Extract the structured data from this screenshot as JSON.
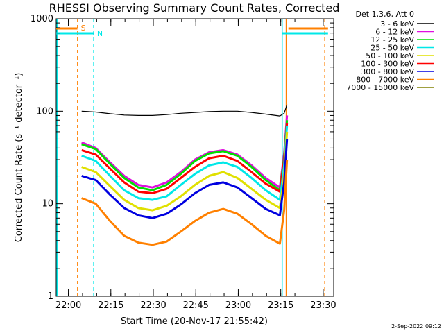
{
  "chart_data": {
    "type": "line",
    "title": "RHESSI Observing Summary Count Rates, Corrected",
    "xlabel": "Start Time (20-Nov-17 21:55:42)",
    "ylabel": "Corrected Count Rate (s⁻¹ detector⁻¹)",
    "yscale": "log",
    "ylim": [
      1,
      1000
    ],
    "xlim_minutes_from_start": [
      0,
      98
    ],
    "x_ticks": [
      {
        "label": "22:00",
        "minute": 4.3
      },
      {
        "label": "22:15",
        "minute": 19.3
      },
      {
        "label": "22:30",
        "minute": 34.3
      },
      {
        "label": "22:45",
        "minute": 49.3
      },
      {
        "label": "23:00",
        "minute": 64.3
      },
      {
        "label": "23:15",
        "minute": 79.3
      },
      {
        "label": "23:30",
        "minute": 94.3
      }
    ],
    "y_ticks": [
      {
        "label": "1",
        "value": 1
      },
      {
        "label": "10",
        "value": 10
      },
      {
        "label": "100",
        "value": 100
      },
      {
        "label": "1000",
        "value": 1000
      }
    ],
    "legend_header": "Det 1,3,6, Att 0",
    "x": [
      9,
      14,
      19,
      24,
      29,
      34,
      39,
      44,
      49,
      54,
      59,
      64,
      69,
      74,
      79,
      80.5,
      81.5
    ],
    "series": [
      {
        "name": "3 - 6 keV",
        "color": "#000000",
        "values": [
          100,
          98,
          94,
          91,
          90,
          90,
          92,
          95,
          97,
          99,
          100,
          100,
          97,
          93,
          89,
          95,
          118
        ]
      },
      {
        "name": "6 - 12 keV",
        "color": "#e010e0",
        "values": [
          46,
          40,
          28,
          20,
          16,
          15,
          17,
          22,
          30,
          36,
          38,
          34,
          26,
          19,
          15,
          35,
          90
        ]
      },
      {
        "name": "12 - 25 keV",
        "color": "#00e000",
        "values": [
          44,
          39,
          27,
          19,
          15,
          14,
          16,
          21,
          29,
          35,
          37,
          33,
          25,
          18,
          14,
          32,
          80
        ]
      },
      {
        "name": "25 - 50 keV",
        "color": "#00e8e8",
        "values": [
          33,
          29,
          20,
          14,
          11.5,
          11,
          12,
          16,
          21,
          26,
          28,
          25,
          19,
          14,
          11,
          26,
          70
        ]
      },
      {
        "name": "50 - 100 keV",
        "color": "#e0e000",
        "values": [
          25,
          22,
          15.5,
          11,
          9,
          8.5,
          9.5,
          12,
          16,
          20,
          22,
          19,
          14.5,
          11,
          9,
          20,
          60
        ]
      },
      {
        "name": "100 - 300 keV",
        "color": "#ff0000",
        "values": [
          38,
          34,
          24,
          17,
          13.5,
          13,
          14.5,
          19,
          25,
          31,
          33,
          29,
          22,
          16.5,
          13.5,
          30,
          75
        ]
      },
      {
        "name": "300 - 800 keV",
        "color": "#0000e0",
        "values": [
          20,
          18,
          12.5,
          9,
          7.5,
          7,
          7.8,
          9.8,
          13,
          16,
          17,
          15,
          11.5,
          8.8,
          7.5,
          17,
          50
        ]
      },
      {
        "name": "800 - 7000 keV",
        "color": "#ff8000",
        "values": [
          11.5,
          10,
          6.5,
          4.5,
          3.8,
          3.6,
          3.9,
          5,
          6.5,
          8,
          8.8,
          7.8,
          6,
          4.5,
          3.7,
          8.5,
          30
        ]
      },
      {
        "name": "7000 - 15000 keV",
        "color": "#808000",
        "values": [
          null,
          null,
          null,
          null,
          null,
          null,
          null,
          null,
          null,
          null,
          null,
          null,
          null,
          null,
          null,
          null,
          null
        ]
      }
    ],
    "markers": [
      {
        "label": "S",
        "color": "#ff8000",
        "minute": 7.5
      },
      {
        "label": "N",
        "color": "#00e8e8",
        "minute": 13.2
      }
    ],
    "timestamp": "2-Sep-2022 09:12"
  }
}
